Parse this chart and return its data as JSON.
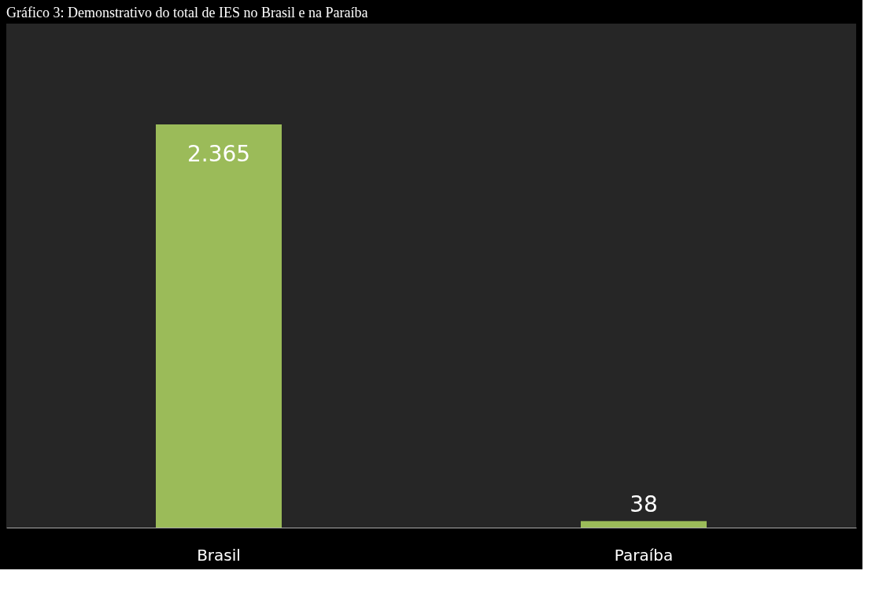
{
  "chart_data": {
    "type": "bar",
    "title": "Gráfico 3: Demonstrativo do total de IES no Brasil e na Paraíba",
    "categories": [
      "Brasil",
      "Paraíba"
    ],
    "values": [
      2365,
      38
    ],
    "color": "#9bbb59",
    "value_labels": [
      "2.365",
      "38"
    ],
    "grid": false
  }
}
